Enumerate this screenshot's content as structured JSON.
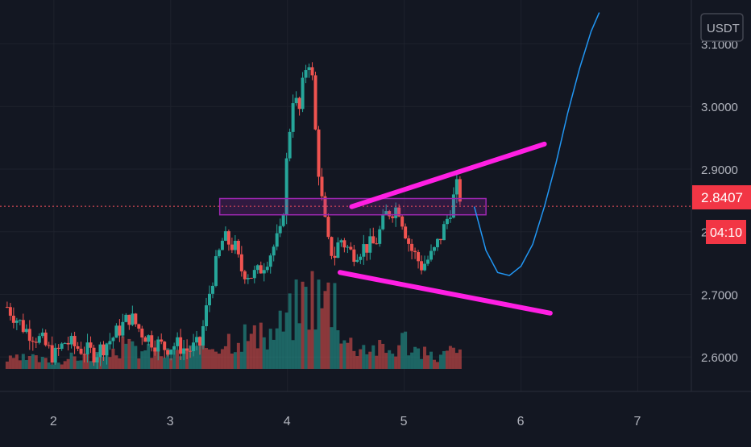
{
  "currency_button": "USDT",
  "price_tag": {
    "value": "2.8407",
    "countdown": "04:10"
  },
  "colors": {
    "background": "#131722",
    "grid": "#1e222d",
    "up": "#26a69a",
    "down": "#ef5350",
    "trendline": "#ff1fe3",
    "projection": "#2196f3",
    "zone": "#9c27b0",
    "price_line": "#f7525f"
  },
  "chart_data": {
    "type": "candlestick",
    "title": "",
    "xlabel": "",
    "ylabel": "",
    "x_ticks": [
      "2",
      "3",
      "4",
      "5",
      "6",
      "7"
    ],
    "y_ticks": [
      "2.6000",
      "2.7000",
      "2.8000",
      "2.9000",
      "3.0000",
      "3.1000"
    ],
    "ylim": [
      2.545,
      3.17
    ],
    "xlim": [
      1.58,
      7.5
    ],
    "last_price": 2.8407,
    "price_series": {
      "x": [
        1.6,
        1.75,
        1.9,
        2.0,
        2.1,
        2.2,
        2.35,
        2.5,
        2.65,
        2.75,
        2.85,
        2.95,
        3.05,
        3.15,
        3.25,
        3.35,
        3.45,
        3.55,
        3.6,
        3.7,
        3.75,
        3.85,
        3.95,
        4.0,
        4.05,
        4.1,
        4.15,
        4.2,
        4.25,
        4.3,
        4.35,
        4.4,
        4.45,
        4.55,
        4.65,
        4.75,
        4.85,
        4.95,
        5.05,
        5.15,
        5.25,
        5.35,
        5.45,
        5.5
      ],
      "y": [
        2.68,
        2.645,
        2.625,
        2.6,
        2.625,
        2.615,
        2.605,
        2.63,
        2.665,
        2.64,
        2.625,
        2.615,
        2.62,
        2.61,
        2.62,
        2.72,
        2.79,
        2.775,
        2.74,
        2.73,
        2.735,
        2.765,
        2.8,
        2.93,
        3.02,
        2.99,
        3.06,
        3.08,
        2.93,
        2.84,
        2.78,
        2.76,
        2.79,
        2.765,
        2.775,
        2.78,
        2.83,
        2.84,
        2.775,
        2.745,
        2.765,
        2.81,
        2.87,
        2.845
      ]
    },
    "volume_series": {
      "x": [
        1.6,
        1.8,
        2.0,
        2.2,
        2.4,
        2.6,
        2.8,
        3.0,
        3.2,
        3.4,
        3.6,
        3.8,
        4.0,
        4.1,
        4.2,
        4.3,
        4.4,
        4.5,
        4.7,
        4.9,
        5.0,
        5.1,
        5.2,
        5.3,
        5.4,
        5.5
      ],
      "v": [
        0.1,
        0.12,
        0.08,
        0.14,
        0.18,
        0.25,
        0.2,
        0.16,
        0.22,
        0.3,
        0.4,
        0.33,
        0.55,
        0.75,
        0.9,
        0.75,
        0.9,
        0.3,
        0.25,
        0.2,
        0.35,
        0.22,
        0.15,
        0.14,
        0.2,
        0.16
      ]
    },
    "annotations": {
      "resistance_zone": {
        "x": [
          3.42,
          5.7
        ],
        "y": [
          2.827,
          2.853
        ]
      },
      "upper_trendline": {
        "x": [
          4.55,
          6.2
        ],
        "y": [
          2.84,
          2.94
        ]
      },
      "lower_trendline": {
        "x": [
          4.45,
          6.25
        ],
        "y": [
          2.735,
          2.67
        ]
      },
      "projection_path": {
        "x": [
          5.6,
          5.7,
          5.8,
          5.9,
          6.0,
          6.1,
          6.2,
          6.3,
          6.4,
          6.5,
          6.6,
          6.67
        ],
        "y": [
          2.84,
          2.77,
          2.735,
          2.73,
          2.745,
          2.78,
          2.84,
          2.91,
          2.99,
          3.06,
          3.12,
          3.15
        ]
      }
    }
  }
}
